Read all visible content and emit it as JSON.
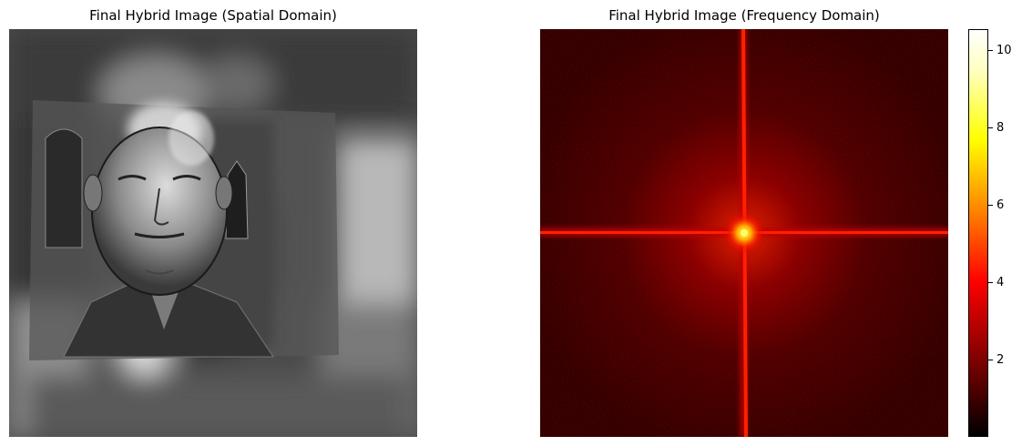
{
  "chart_data": [
    {
      "type": "heatmap",
      "title": "Final Hybrid Image (Spatial Domain)",
      "colormap": "gray",
      "axes_visible": false,
      "content": "grayscale hybrid image: sharp high-frequency face over a blurred low-frequency background"
    },
    {
      "type": "heatmap",
      "title": "Final Hybrid Image (Frequency Domain)",
      "colormap": "hot",
      "axes_visible": false,
      "colorbar": {
        "ticks": [
          2,
          4,
          6,
          8,
          10
        ],
        "tick_labels": [
          "2",
          "4",
          "6",
          "8",
          "10"
        ],
        "range": [
          0.1,
          10.5
        ]
      },
      "content": "log-magnitude spectrum with bright central peak and horizontal/vertical cross lines"
    }
  ]
}
